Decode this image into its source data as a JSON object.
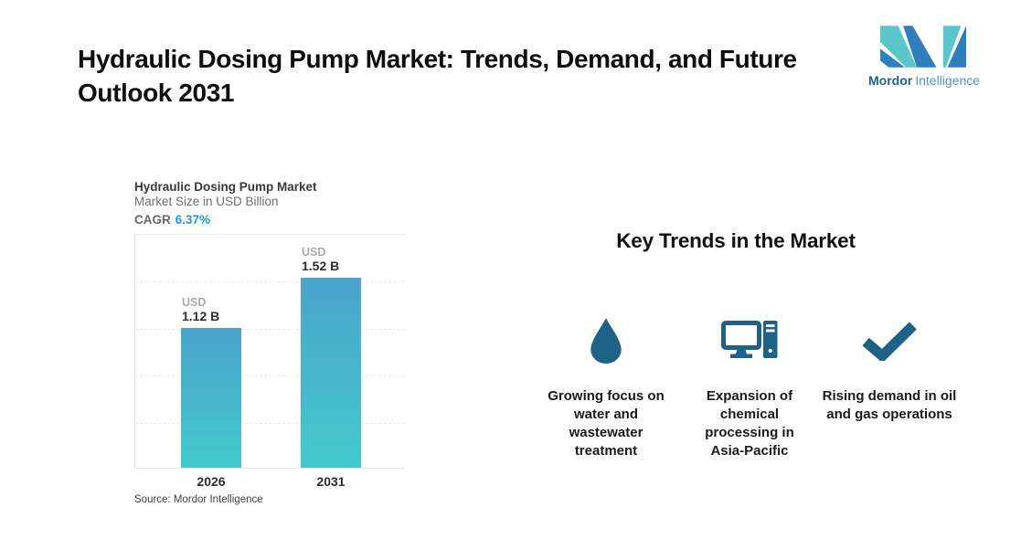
{
  "page": {
    "title": "Hydraulic Dosing Pump Market: Trends, Demand, and Future Outlook 2031"
  },
  "logo": {
    "name": "mordor-intelligence-logo",
    "brand_bold": "Mordor",
    "brand_regular": "Intelligence",
    "teal": "#5bc5cc",
    "blue": "#2f7ebd"
  },
  "chart": {
    "title": "Hydraulic Dosing Pump Market",
    "subtitle": "Market Size in USD Billion",
    "cagr_label": "CAGR",
    "cagr_value": "6.37%",
    "source": "Source: Mordor Intelligence",
    "bars": [
      {
        "year": "2026",
        "currency": "USD",
        "value_label": "1.12 B"
      },
      {
        "year": "2031",
        "currency": "USD",
        "value_label": "1.52 B"
      }
    ],
    "colors": {
      "bar_gradient_top": "#4ba3cc",
      "bar_gradient_bottom": "#42cacd",
      "cagr_blue": "#2199d6"
    }
  },
  "chart_data": {
    "type": "bar",
    "title": "Hydraulic Dosing Pump Market",
    "subtitle": "Market Size in USD Billion",
    "categories": [
      "2026",
      "2031"
    ],
    "values": [
      1.12,
      1.52
    ],
    "unit": "USD Billion",
    "data_labels": [
      "USD 1.12 B",
      "USD 1.52 B"
    ],
    "cagr": "6.37%",
    "xlabel": "",
    "ylabel": "Market Size in USD Billion",
    "ylim": [
      0,
      1.88
    ],
    "grid": "horizontal-dashed",
    "legend": "none",
    "source": "Source: Mordor Intelligence"
  },
  "trends": {
    "heading": "Key Trends in the Market",
    "icon_color": "#1e6287",
    "items": [
      {
        "icon": "water-drop-icon",
        "text": "Growing focus on water and wastewater treatment"
      },
      {
        "icon": "desktop-computer-icon",
        "text": "Expansion of chemical processing in Asia-Pacific"
      },
      {
        "icon": "checkmark-icon",
        "text": "Rising demand in oil and gas operations"
      }
    ]
  }
}
